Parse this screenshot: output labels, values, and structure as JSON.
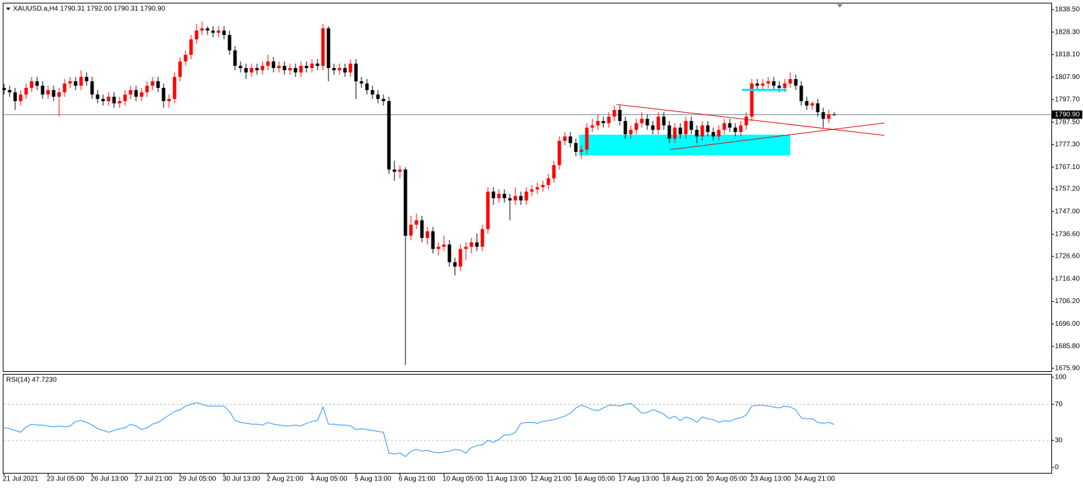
{
  "chart_data": [
    {
      "type": "candlestick",
      "title": "XAUUSD.a,H4  1790.31 1792.00 1790.31 1790.90",
      "categories": [
        "21 Jul 2021",
        null,
        null,
        null,
        null,
        null,
        null,
        null,
        "23 Jul 05:00",
        null,
        null,
        null,
        null,
        null,
        null,
        null,
        "26 Jul 13:00",
        null,
        null,
        null,
        null,
        null,
        null,
        null,
        "27 Jul 21:00",
        null,
        null,
        null,
        null,
        null,
        null,
        null,
        "29 Jul 05:00",
        null,
        null,
        null,
        null,
        null,
        null,
        null,
        "30 Jul 13:00",
        null,
        null,
        null,
        null,
        null,
        null,
        null,
        "2 Aug 21:00",
        null,
        null,
        null,
        null,
        null,
        null,
        null,
        "4 Aug 05:00",
        null,
        null,
        null,
        null,
        null,
        null,
        null,
        "5 Aug 13:00",
        null,
        null,
        null,
        null,
        null,
        null,
        null,
        "6 Aug 21:00",
        null,
        null,
        null,
        null,
        null,
        null,
        null,
        "10 Aug 05:00",
        null,
        null,
        null,
        null,
        null,
        null,
        null,
        "11 Aug 13:00",
        null,
        null,
        null,
        null,
        null,
        null,
        null,
        "12 Aug 21:00",
        null,
        null,
        null,
        null,
        null,
        null,
        null,
        "16 Aug 05:00",
        null,
        null,
        null,
        null,
        null,
        null,
        null,
        "17 Aug 13:00",
        null,
        null,
        null,
        null,
        null,
        null,
        null,
        "18 Aug 21:00",
        null,
        null,
        null,
        null,
        null,
        null,
        null,
        "20 Aug 05:00",
        null,
        null,
        null,
        null,
        null,
        null,
        null,
        "23 Aug 13:00",
        null,
        null,
        null,
        null,
        null,
        null,
        null,
        "24 Aug 21:00",
        null,
        null,
        null,
        null,
        null,
        null,
        null
      ],
      "open": [
        1803,
        1802,
        1801,
        1797,
        1800,
        1803,
        1806,
        1804,
        1800,
        1802,
        1799,
        1801,
        1805,
        1806,
        1804,
        1808,
        1806,
        1800,
        1798,
        1797,
        1799,
        1796,
        1797,
        1800,
        1802,
        1799,
        1801,
        1804,
        1806,
        1803,
        1797,
        1798,
        1808,
        1815,
        1818,
        1825,
        1829,
        1830,
        1829,
        1828,
        1829,
        1827,
        1820,
        1813,
        1812,
        1810,
        1812,
        1811,
        1813,
        1815,
        1812,
        1813,
        1811,
        1812,
        1810,
        1813,
        1812,
        1814,
        1813,
        1830,
        1812,
        1811,
        1812,
        1810,
        1814,
        1806,
        1805,
        1802,
        1800,
        1798,
        1797,
        1766,
        1765,
        1766,
        1736,
        1741,
        1743,
        1735,
        1738,
        1730,
        1731,
        1732,
        1724,
        1722,
        1730,
        1731,
        1733,
        1731,
        1739,
        1756,
        1753,
        1755,
        1753,
        1752,
        1754,
        1752,
        1756,
        1757,
        1758,
        1759,
        1762,
        1768,
        1779,
        1781,
        1778,
        1774,
        1775,
        1785,
        1786,
        1788,
        1787,
        1790,
        1793,
        1788,
        1782,
        1784,
        1787,
        1789,
        1786,
        1784,
        1790,
        1786,
        1780,
        1785,
        1782,
        1788,
        1784,
        1781,
        1786,
        1783,
        1781,
        1784,
        1787,
        1785,
        1783,
        1786,
        1790,
        1805,
        1804,
        1805,
        1806,
        1804,
        1803,
        1805,
        1807,
        1804,
        1797,
        1795,
        1796,
        1792,
        1789,
        1791
      ],
      "high": [
        1805,
        1804,
        1803,
        1802,
        1805,
        1808,
        1808,
        1806,
        1804,
        1804,
        1803,
        1807,
        1808,
        1808,
        1811,
        1810,
        1808,
        1802,
        1800,
        1801,
        1801,
        1799,
        1802,
        1804,
        1804,
        1803,
        1806,
        1808,
        1808,
        1805,
        1800,
        1810,
        1817,
        1820,
        1827,
        1832,
        1833,
        1831,
        1831,
        1831,
        1831,
        1829,
        1822,
        1815,
        1814,
        1814,
        1814,
        1815,
        1818,
        1817,
        1815,
        1815,
        1814,
        1814,
        1815,
        1815,
        1816,
        1816,
        1832,
        1831,
        1814,
        1814,
        1814,
        1816,
        1816,
        1808,
        1807,
        1804,
        1802,
        1800,
        1799,
        1770,
        1768,
        1767,
        1745,
        1746,
        1745,
        1740,
        1740,
        1733,
        1736,
        1734,
        1726,
        1732,
        1733,
        1735,
        1737,
        1741,
        1758,
        1758,
        1757,
        1757,
        1755,
        1758,
        1756,
        1758,
        1759,
        1760,
        1761,
        1764,
        1770,
        1781,
        1783,
        1783,
        1780,
        1777,
        1787,
        1789,
        1791,
        1790,
        1792,
        1795,
        1795,
        1790,
        1786,
        1789,
        1792,
        1791,
        1788,
        1792,
        1792,
        1788,
        1787,
        1787,
        1790,
        1790,
        1786,
        1788,
        1788,
        1785,
        1786,
        1789,
        1789,
        1787,
        1788,
        1792,
        1807,
        1807,
        1807,
        1808,
        1808,
        1806,
        1807,
        1810,
        1809,
        1806,
        1799,
        1797,
        1798,
        1794,
        1793,
        1792
      ],
      "low": [
        1800,
        1799,
        1793,
        1795,
        1798,
        1801,
        1802,
        1798,
        1798,
        1797,
        1790,
        1799,
        1803,
        1802,
        1802,
        1804,
        1798,
        1796,
        1795,
        1795,
        1794,
        1794,
        1795,
        1798,
        1797,
        1797,
        1799,
        1802,
        1801,
        1794,
        1794,
        1796,
        1806,
        1813,
        1816,
        1823,
        1827,
        1827,
        1826,
        1826,
        1825,
        1818,
        1811,
        1810,
        1807,
        1808,
        1809,
        1809,
        1811,
        1810,
        1810,
        1809,
        1809,
        1808,
        1808,
        1810,
        1810,
        1811,
        1811,
        1806,
        1809,
        1809,
        1808,
        1808,
        1798,
        1803,
        1800,
        1798,
        1796,
        1795,
        1764,
        1761,
        1762,
        1677.5,
        1734,
        1739,
        1733,
        1732,
        1728,
        1727,
        1729,
        1722,
        1718,
        1720,
        1725,
        1728,
        1729,
        1729,
        1737,
        1750,
        1751,
        1751,
        1743,
        1750,
        1750,
        1750,
        1754,
        1755,
        1756,
        1757,
        1760,
        1766,
        1777,
        1776,
        1772,
        1771,
        1773,
        1783,
        1784,
        1785,
        1785,
        1788,
        1786,
        1780,
        1780,
        1782,
        1785,
        1784,
        1782,
        1782,
        1784,
        1778,
        1778,
        1780,
        1780,
        1782,
        1778,
        1779,
        1781,
        1779,
        1779,
        1782,
        1783,
        1781,
        1781,
        1784,
        1788,
        1802,
        1802,
        1803,
        1802,
        1801,
        1801,
        1803,
        1802,
        1795,
        1793,
        1793,
        1790,
        1785,
        1787,
        1790.3
      ],
      "close": [
        1802,
        1801,
        1797,
        1800,
        1803,
        1806,
        1804,
        1800,
        1802,
        1799,
        1801,
        1805,
        1806,
        1804,
        1808,
        1806,
        1800,
        1798,
        1797,
        1799,
        1796,
        1797,
        1800,
        1802,
        1799,
        1801,
        1804,
        1806,
        1803,
        1797,
        1798,
        1808,
        1815,
        1818,
        1825,
        1829,
        1830,
        1829,
        1828,
        1829,
        1827,
        1820,
        1813,
        1812,
        1810,
        1812,
        1811,
        1813,
        1815,
        1812,
        1813,
        1811,
        1812,
        1810,
        1813,
        1812,
        1814,
        1813,
        1830,
        1812,
        1811,
        1812,
        1810,
        1814,
        1806,
        1805,
        1802,
        1800,
        1798,
        1797,
        1766,
        1765,
        1766,
        1736,
        1741,
        1743,
        1735,
        1738,
        1730,
        1731,
        1732,
        1724,
        1722,
        1730,
        1731,
        1733,
        1731,
        1739,
        1756,
        1753,
        1755,
        1753,
        1752,
        1754,
        1752,
        1756,
        1757,
        1758,
        1759,
        1762,
        1768,
        1779,
        1781,
        1778,
        1774,
        1775,
        1785,
        1786,
        1788,
        1787,
        1790,
        1793,
        1788,
        1782,
        1784,
        1787,
        1789,
        1786,
        1784,
        1790,
        1786,
        1780,
        1785,
        1782,
        1788,
        1784,
        1781,
        1786,
        1783,
        1781,
        1784,
        1787,
        1785,
        1783,
        1786,
        1790,
        1805,
        1804,
        1805,
        1806,
        1804,
        1803,
        1805,
        1807,
        1804,
        1797,
        1795,
        1796,
        1792,
        1789,
        1791,
        1790.9
      ],
      "up_color": "#ff0000",
      "down_color": "#000000",
      "ylim": [
        1674.6,
        1841.6
      ],
      "yticks": [
        {
          "value": 1838.5,
          "label": "1838.50"
        },
        {
          "value": 1828.3,
          "label": "1828.30"
        },
        {
          "value": 1818.1,
          "label": "1818.10"
        },
        {
          "value": 1807.9,
          "label": "1807.90"
        },
        {
          "value": 1797.7,
          "label": "1797.70"
        },
        {
          "value": 1787.5,
          "label": "1787.50"
        },
        {
          "value": 1777.3,
          "label": "1777.30"
        },
        {
          "value": 1767.1,
          "label": "1767.10"
        },
        {
          "value": 1757.2,
          "label": "1757.20"
        },
        {
          "value": 1747,
          "label": "1747.00"
        },
        {
          "value": 1736.6,
          "label": "1736.60"
        },
        {
          "value": 1726.6,
          "label": "1726.60"
        },
        {
          "value": 1716.4,
          "label": "1716.40"
        },
        {
          "value": 1706.2,
          "label": "1706.20"
        },
        {
          "value": 1696,
          "label": "1696.00"
        },
        {
          "value": 1685.8,
          "label": "1685.80"
        },
        {
          "value": 1675.9,
          "label": "1675.90"
        }
      ],
      "current_price": {
        "value": 1790.9,
        "label": "1790.90"
      },
      "zones": [
        {
          "x": [
            104.6,
            143
          ],
          "y": [
            1772.4,
            1781.8
          ],
          "color": "#00ffff"
        }
      ],
      "lines": [
        {
          "x": [
            111.4,
            160.1
          ],
          "y": [
            1795.5,
            1781.5
          ],
          "color": "#e00000"
        },
        {
          "x": [
            121.1,
            160.1
          ],
          "y": [
            1775,
            1787.1
          ],
          "color": "#e00000"
        },
        {
          "x": [
            134.25,
            142.4
          ],
          "y": [
            1802.1,
            1802.1
          ],
          "color": "#00e5ff"
        }
      ]
    },
    {
      "type": "line",
      "title": "RSI(14) 47.7230",
      "values": [
        44,
        43,
        41,
        39,
        45,
        48,
        47,
        47,
        46,
        45,
        46,
        45,
        46,
        51,
        52,
        50,
        47,
        43,
        41,
        39,
        41,
        43,
        44,
        48,
        46,
        42,
        44,
        48,
        50,
        54,
        58,
        62,
        64,
        68,
        70,
        72,
        70,
        68,
        68,
        68,
        68,
        62,
        52,
        50,
        49,
        48,
        48,
        47,
        50,
        48,
        47,
        46,
        46,
        47,
        46,
        49,
        51,
        52,
        67,
        48,
        48,
        47,
        47,
        46,
        42,
        43,
        42,
        41,
        40,
        39,
        16,
        15,
        16,
        12,
        18,
        20,
        18,
        19,
        17,
        16,
        17,
        18,
        20,
        19,
        16,
        22,
        24,
        25,
        30,
        28,
        31,
        36,
        36,
        39,
        49,
        50,
        50,
        49,
        51,
        52,
        53,
        55,
        57,
        60,
        66,
        69,
        67,
        64,
        63,
        66,
        69,
        69,
        68,
        70,
        71,
        66,
        60,
        61,
        64,
        62,
        59,
        54,
        57,
        52,
        56,
        54,
        50,
        56,
        54,
        53,
        50,
        52,
        51,
        54,
        55,
        58,
        68,
        69,
        69,
        68,
        67,
        66,
        68,
        67,
        64,
        55,
        54,
        54,
        50,
        49,
        50,
        47.7
      ],
      "color": "#1e90ff",
      "ylim": [
        -6.1,
        103.8
      ],
      "yticks": [
        0,
        30,
        70,
        100
      ],
      "levels": [
        30,
        70
      ]
    }
  ]
}
